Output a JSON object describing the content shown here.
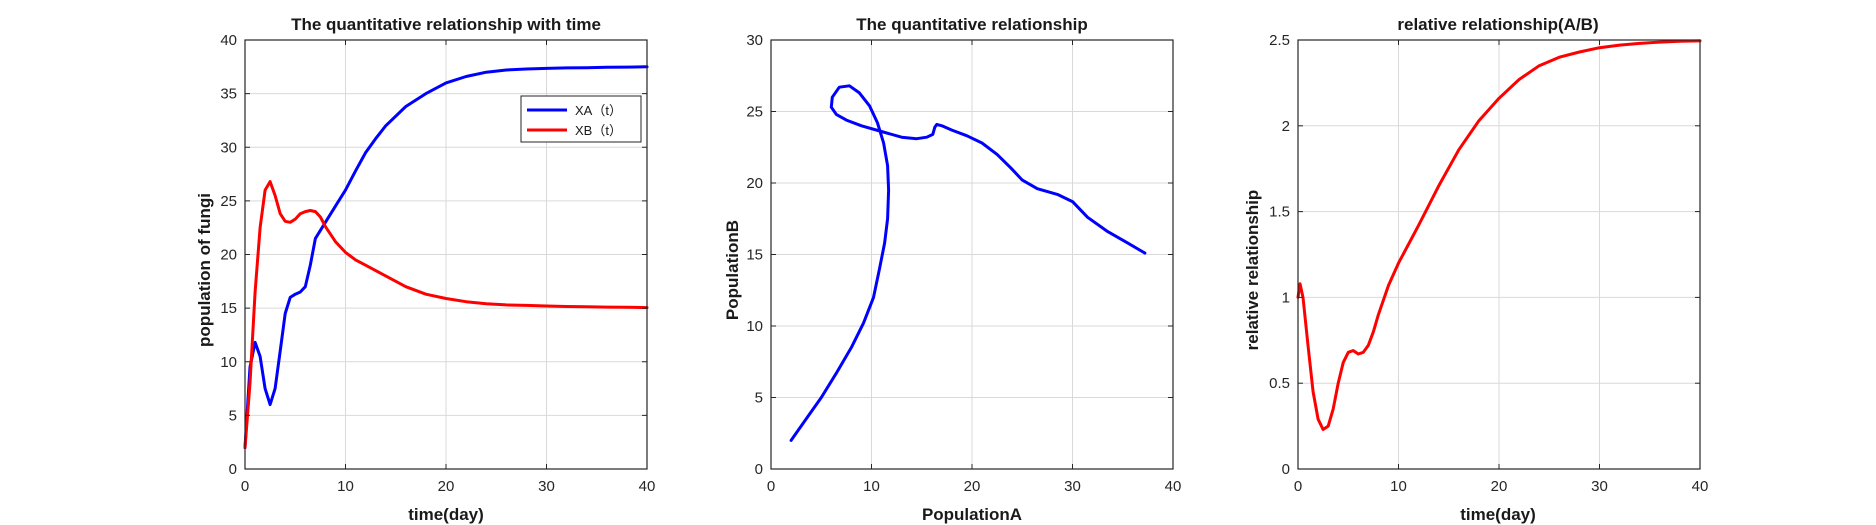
{
  "chart_data": [
    {
      "type": "line",
      "title": "The quantitative relationship with time",
      "xlabel": "time(day)",
      "ylabel": "population of fungi",
      "xlim": [
        0,
        40
      ],
      "ylim": [
        0,
        40
      ],
      "xticks": [
        0,
        10,
        20,
        30,
        40
      ],
      "yticks": [
        0,
        5,
        10,
        15,
        20,
        25,
        30,
        35,
        40
      ],
      "xtick_labels": [
        "0",
        "10",
        "20",
        "30",
        "40"
      ],
      "ytick_labels": [
        "0",
        "5",
        "10",
        "15",
        "20",
        "25",
        "30",
        "35",
        "40"
      ],
      "grid": true,
      "legend": "top-right",
      "series": [
        {
          "name": "XA（t）",
          "color": "#0000ff",
          "x": [
            0,
            0.5,
            1,
            1.5,
            2,
            2.5,
            3,
            3.5,
            4,
            4.5,
            5,
            5.5,
            6,
            6.5,
            7,
            8,
            9,
            10,
            11,
            12,
            13,
            14,
            16,
            18,
            20,
            22,
            24,
            26,
            28,
            30,
            32,
            34,
            36,
            38,
            40
          ],
          "y": [
            2,
            9.5,
            11.8,
            10.5,
            7.5,
            6.0,
            7.5,
            11.0,
            14.5,
            16.0,
            16.3,
            16.5,
            17.0,
            19.0,
            21.5,
            23.0,
            24.5,
            26.0,
            27.8,
            29.5,
            30.8,
            32.0,
            33.8,
            35.0,
            36.0,
            36.6,
            37.0,
            37.2,
            37.3,
            37.35,
            37.4,
            37.42,
            37.45,
            37.47,
            37.5
          ]
        },
        {
          "name": "XB（t）",
          "color": "#ff0000",
          "x": [
            0,
            0.5,
            1,
            1.5,
            2,
            2.5,
            3,
            3.5,
            4,
            4.5,
            5,
            5.5,
            6,
            6.5,
            7,
            7.5,
            8,
            9,
            10,
            11,
            12,
            13,
            14,
            16,
            18,
            20,
            22,
            24,
            26,
            28,
            30,
            32,
            34,
            36,
            38,
            40
          ],
          "y": [
            2,
            8.0,
            16.5,
            22.5,
            26.0,
            26.8,
            25.5,
            23.8,
            23.1,
            23.0,
            23.3,
            23.8,
            24.0,
            24.1,
            24.0,
            23.5,
            22.6,
            21.2,
            20.2,
            19.5,
            19.0,
            18.5,
            18.0,
            17.0,
            16.3,
            15.9,
            15.6,
            15.4,
            15.3,
            15.25,
            15.2,
            15.15,
            15.12,
            15.1,
            15.08,
            15.05
          ]
        }
      ]
    },
    {
      "type": "line",
      "title": "The quantitative relationship",
      "xlabel": "PopulationA",
      "ylabel": "PopulationB",
      "xlim": [
        0,
        40
      ],
      "ylim": [
        0,
        30
      ],
      "xticks": [
        0,
        10,
        20,
        30,
        40
      ],
      "yticks": [
        0,
        5,
        10,
        15,
        20,
        25,
        30
      ],
      "xtick_labels": [
        "0",
        "10",
        "20",
        "30",
        "40"
      ],
      "ytick_labels": [
        "0",
        "5",
        "10",
        "15",
        "20",
        "25",
        "30"
      ],
      "grid": true,
      "series": [
        {
          "color": "#0000ff",
          "x": [
            2.0,
            3.5,
            5.0,
            6.5,
            8.0,
            9.2,
            10.2,
            10.8,
            11.3,
            11.6,
            11.7,
            11.6,
            11.2,
            10.6,
            9.8,
            8.8,
            7.8,
            6.8,
            6.1,
            6.0,
            6.5,
            7.5,
            9.0,
            11.0,
            13.0,
            14.5,
            15.5,
            16.1,
            16.3,
            16.5,
            17.0,
            18.0,
            19.5,
            21.0,
            22.5,
            23.8,
            25.0,
            26.5,
            28.5,
            30.0,
            31.5,
            33.5,
            35.5,
            37.2
          ],
          "y": [
            2.0,
            3.5,
            5.0,
            6.7,
            8.5,
            10.2,
            12.0,
            14.0,
            15.8,
            17.5,
            19.5,
            21.2,
            22.8,
            24.2,
            25.4,
            26.3,
            26.8,
            26.7,
            26.0,
            25.3,
            24.8,
            24.4,
            24.0,
            23.6,
            23.2,
            23.1,
            23.2,
            23.4,
            23.9,
            24.1,
            24.0,
            23.7,
            23.3,
            22.8,
            22.0,
            21.1,
            20.2,
            19.6,
            19.2,
            18.7,
            17.6,
            16.6,
            15.8,
            15.1
          ]
        }
      ]
    },
    {
      "type": "line",
      "title": "relative relationship(A/B)",
      "xlabel": "time(day)",
      "ylabel": "relative relationship",
      "xlim": [
        0,
        40
      ],
      "ylim": [
        0,
        2.5
      ],
      "xticks": [
        0,
        10,
        20,
        30,
        40
      ],
      "yticks": [
        0,
        0.5,
        1,
        1.5,
        2,
        2.5
      ],
      "xtick_labels": [
        "0",
        "10",
        "20",
        "30",
        "40"
      ],
      "ytick_labels": [
        "0",
        "0.5",
        "1",
        "1.5",
        "2",
        "2.5"
      ],
      "grid": true,
      "series": [
        {
          "color": "#ff0000",
          "x": [
            0,
            0.2,
            0.5,
            1,
            1.5,
            2,
            2.5,
            3,
            3.5,
            4,
            4.5,
            5,
            5.5,
            6,
            6.5,
            7,
            7.5,
            8,
            9,
            10,
            12,
            14,
            16,
            18,
            20,
            22,
            24,
            26,
            28,
            30,
            32,
            34,
            36,
            38,
            40
          ],
          "y": [
            1.0,
            1.08,
            1.0,
            0.72,
            0.45,
            0.29,
            0.23,
            0.25,
            0.35,
            0.5,
            0.62,
            0.68,
            0.69,
            0.67,
            0.68,
            0.72,
            0.8,
            0.9,
            1.07,
            1.2,
            1.42,
            1.65,
            1.86,
            2.03,
            2.16,
            2.27,
            2.35,
            2.4,
            2.43,
            2.455,
            2.47,
            2.48,
            2.488,
            2.493,
            2.495
          ]
        }
      ]
    }
  ]
}
